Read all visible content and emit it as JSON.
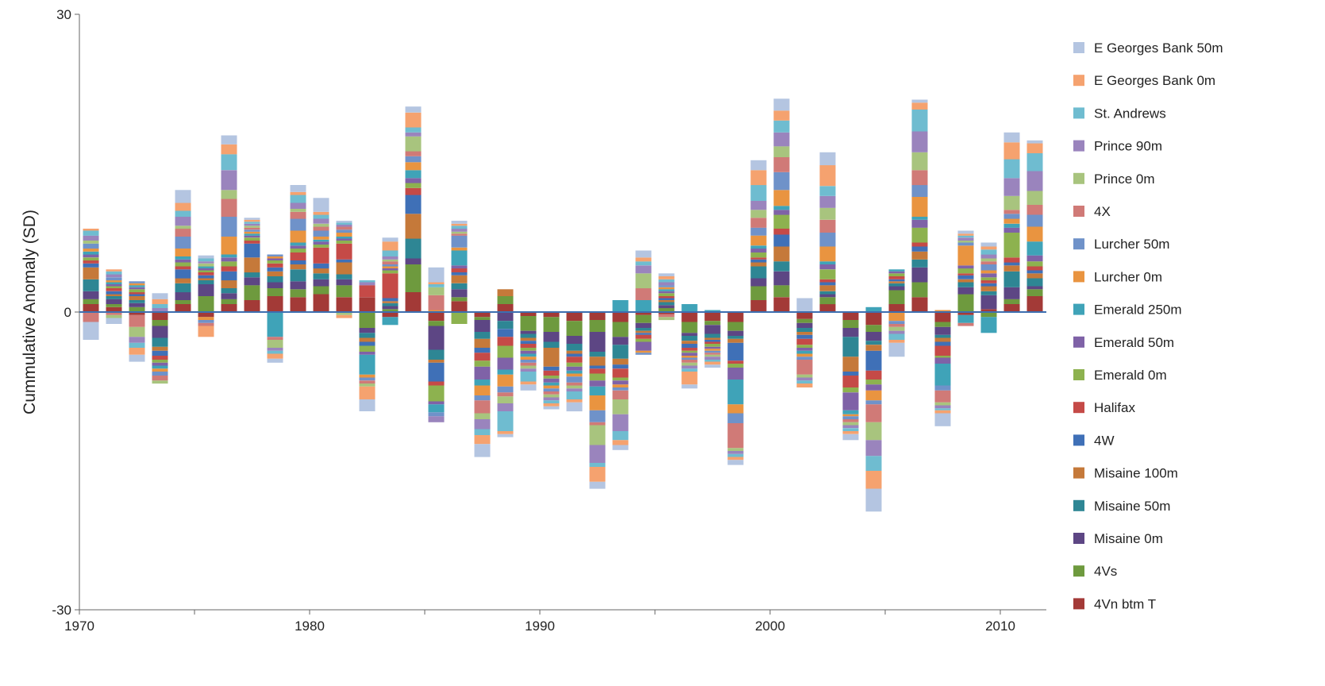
{
  "chart_data": {
    "type": "bar",
    "stacked": true,
    "title": "",
    "xlabel": "",
    "ylabel": "Cummulative Anomaly  (SD)",
    "ylim": [
      -30,
      30
    ],
    "xlim": [
      1970,
      2012
    ],
    "x_ticks": [
      1970,
      1980,
      1990,
      2000,
      2010
    ],
    "y_ticks": [
      -30,
      0,
      30
    ],
    "grid": false,
    "legend_position": "right",
    "years": [
      1970,
      1971,
      1972,
      1973,
      1974,
      1975,
      1976,
      1977,
      1978,
      1979,
      1980,
      1981,
      1982,
      1983,
      1984,
      1985,
      1986,
      1987,
      1988,
      1989,
      1990,
      1991,
      1992,
      1993,
      1994,
      1995,
      1996,
      1997,
      1998,
      1999,
      2000,
      2001,
      2002,
      2003,
      2004,
      2005,
      2006,
      2007,
      2008,
      2009,
      2010,
      2011
    ],
    "series": [
      {
        "name": "4Vn btm T",
        "color": "#a33a37",
        "values": [
          0.8,
          0.5,
          -0.3,
          -0.8,
          0.8,
          -0.5,
          0.8,
          1.2,
          1.6,
          1.5,
          1.8,
          1.5,
          1.5,
          -0.5,
          2.0,
          -0.9,
          1.1,
          -0.5,
          0.8,
          -0.4,
          -0.5,
          -0.9,
          -0.8,
          -1.0,
          -0.3,
          -0.2,
          -1.0,
          -0.9,
          -1.0,
          1.2,
          1.5,
          -0.7,
          0.8,
          -0.8,
          -1.3,
          0.8,
          1.5,
          -1.0,
          -0.3,
          0.3,
          0.8,
          1.6
        ]
      },
      {
        "name": "4Vs",
        "color": "#6e9a3e",
        "values": [
          0.5,
          0.3,
          0.5,
          -0.6,
          0.4,
          1.6,
          0.5,
          1.5,
          0.8,
          0.8,
          0.8,
          1.2,
          -1.6,
          0.3,
          2.8,
          -0.5,
          0.4,
          -0.3,
          0.8,
          -1.5,
          -1.5,
          -1.5,
          -1.2,
          -1.5,
          -0.8,
          0.4,
          -1.1,
          -0.4,
          -0.9,
          1.4,
          1.2,
          -0.4,
          0.7,
          -0.8,
          -0.7,
          1.4,
          1.5,
          -0.5,
          1.8,
          -0.5,
          0.5,
          0.7
        ]
      },
      {
        "name": "Misaine 0m",
        "color": "#5d4684",
        "values": [
          0.8,
          0.5,
          0.4,
          -1.2,
          0.8,
          1.2,
          0.6,
          0.8,
          0.6,
          0.8,
          0.7,
          0.6,
          -0.5,
          0.3,
          0.6,
          -2.4,
          0.8,
          -1.2,
          -0.9,
          -0.3,
          -1.0,
          -0.8,
          -2.0,
          -0.8,
          -0.5,
          0.3,
          -0.3,
          -0.9,
          -0.5,
          0.8,
          1.4,
          -0.5,
          0.3,
          -0.9,
          -0.9,
          0.4,
          1.5,
          -0.8,
          0.7,
          1.4,
          1.2,
          0.3
        ]
      },
      {
        "name": "Misaine 50m",
        "color": "#2e8694",
        "values": [
          1.2,
          0.3,
          0.3,
          -0.9,
          0.9,
          0.4,
          0.5,
          0.5,
          0.6,
          1.2,
          0.6,
          0.5,
          -0.5,
          0.3,
          2.0,
          -1.0,
          0.6,
          -0.7,
          -0.8,
          -0.4,
          -0.6,
          -0.7,
          -0.5,
          -1.4,
          -0.3,
          0.3,
          -0.5,
          -0.4,
          -0.3,
          1.2,
          1.0,
          -0.4,
          0.3,
          -2.0,
          -0.4,
          0.3,
          0.8,
          -0.3,
          0.5,
          0.4,
          1.6,
          0.8
        ]
      },
      {
        "name": "Misaine 100m",
        "color": "#c5793a",
        "values": [
          1.2,
          0.2,
          0.4,
          -0.4,
          0.5,
          0.2,
          0.8,
          1.5,
          0.5,
          0.5,
          0.5,
          1.2,
          -0.4,
          0.2,
          2.5,
          -0.3,
          0.8,
          -0.9,
          0.7,
          -0.3,
          -1.9,
          -0.3,
          -0.9,
          -0.6,
          -0.2,
          0.2,
          -0.3,
          -0.2,
          -0.4,
          0.4,
          1.5,
          -0.3,
          0.6,
          -1.5,
          -0.6,
          0.2,
          0.8,
          -0.4,
          0.3,
          0.5,
          0.6,
          0.5
        ]
      },
      {
        "name": "4W",
        "color": "#3f70b7",
        "values": [
          0.4,
          0.3,
          0.2,
          -0.5,
          0.9,
          0.3,
          0.9,
          1.4,
          0.4,
          0.4,
          0.5,
          0.3,
          -0.4,
          0.3,
          1.9,
          -1.9,
          0.3,
          -0.5,
          -0.8,
          -0.3,
          -0.4,
          -0.3,
          -0.3,
          -0.4,
          -0.2,
          0.2,
          -0.4,
          -0.2,
          -1.8,
          0.3,
          1.2,
          -0.4,
          0.3,
          -0.4,
          -2.0,
          0.2,
          0.5,
          -0.4,
          0.4,
          0.3,
          0.3,
          0.3
        ]
      },
      {
        "name": "Halifax",
        "color": "#c54a47",
        "values": [
          0.3,
          0.3,
          0.2,
          -0.4,
          0.3,
          0.3,
          0.5,
          0.3,
          0.4,
          0.8,
          1.6,
          1.6,
          1.2,
          2.5,
          0.7,
          -0.4,
          0.4,
          -0.8,
          -0.9,
          -0.4,
          -0.5,
          -0.6,
          -0.5,
          -0.9,
          -0.4,
          0.2,
          -0.3,
          -0.2,
          -0.3,
          0.2,
          0.6,
          -0.6,
          0.3,
          -1.2,
          -0.9,
          0.3,
          0.4,
          -1.0,
          0.2,
          0.3,
          0.5,
          0.4
        ]
      },
      {
        "name": "Emerald 0m",
        "color": "#8db24f",
        "values": [
          0.3,
          0.2,
          0.3,
          -0.3,
          0.4,
          0.2,
          0.5,
          0.3,
          0.3,
          0.4,
          0.3,
          0.3,
          -0.6,
          0.3,
          0.5,
          -1.6,
          -1.2,
          -0.6,
          -1.2,
          -0.3,
          -0.3,
          -0.4,
          -0.7,
          -0.3,
          -0.3,
          0.3,
          -0.2,
          -0.3,
          -0.4,
          0.5,
          1.4,
          -0.3,
          1.0,
          -0.5,
          -0.5,
          0.3,
          1.5,
          -0.2,
          0.5,
          0.3,
          2.5,
          0.5
        ]
      },
      {
        "name": "Emerald 50m",
        "color": "#7f62a7",
        "values": [
          0.3,
          0.2,
          0.2,
          -0.3,
          0.3,
          0.2,
          0.4,
          0.2,
          0.2,
          0.3,
          0.3,
          0.2,
          -0.3,
          0.2,
          0.5,
          -0.3,
          0.3,
          -1.3,
          -1.2,
          -0.3,
          -0.4,
          -0.4,
          -0.6,
          -0.4,
          -0.9,
          0.2,
          -0.3,
          -0.2,
          -1.2,
          0.4,
          0.5,
          -0.3,
          0.5,
          -1.8,
          -0.6,
          0.2,
          0.8,
          -0.6,
          0.3,
          0.4,
          0.5,
          0.6
        ]
      },
      {
        "name": "Emerald 250m",
        "color": "#3fa3b8",
        "values": [
          0.3,
          0.2,
          0.2,
          -0.3,
          0.3,
          0.2,
          0.3,
          0.2,
          -2.5,
          0.3,
          0.2,
          0.2,
          -2.0,
          -0.8,
          0.8,
          -0.8,
          1.5,
          -0.6,
          -0.5,
          -0.3,
          -0.3,
          -0.3,
          -0.9,
          1.2,
          1.2,
          0.2,
          0.8,
          0.2,
          -2.5,
          0.3,
          0.4,
          -0.3,
          0.3,
          -0.4,
          0.5,
          0.2,
          0.3,
          -2.2,
          -0.8,
          -1.6,
          0.4,
          1.4
        ]
      },
      {
        "name": "Lurcher 0m",
        "color": "#e99440",
        "values": [
          0.3,
          0.2,
          0.2,
          -0.3,
          0.8,
          -0.3,
          1.8,
          0.2,
          0.2,
          1.2,
          0.3,
          0.4,
          -0.3,
          0.2,
          0.8,
          0.2,
          0.3,
          -1.0,
          -1.2,
          -0.3,
          -0.3,
          -0.3,
          -1.5,
          -0.3,
          -0.2,
          0.2,
          -0.2,
          -0.2,
          -0.9,
          1.0,
          1.6,
          -0.3,
          1.5,
          -0.2,
          -1.0,
          -0.9,
          2.0,
          0.2,
          2.0,
          0.3,
          0.5,
          1.5
        ]
      },
      {
        "name": "Lurcher 50m",
        "color": "#6f92c9",
        "values": [
          0.5,
          0.3,
          0.2,
          -0.4,
          1.2,
          -0.3,
          2.0,
          0.2,
          0.2,
          1.2,
          0.6,
          0.3,
          -0.3,
          0.2,
          0.6,
          -0.4,
          1.2,
          -0.5,
          -0.6,
          -0.3,
          -0.3,
          -0.6,
          -1.2,
          -0.3,
          -0.2,
          0.2,
          -0.2,
          -0.2,
          -1.0,
          0.8,
          1.8,
          -0.3,
          1.4,
          -0.3,
          -0.4,
          -0.3,
          1.2,
          -0.5,
          0.3,
          0.6,
          0.5,
          1.2
        ]
      },
      {
        "name": "4X",
        "color": "#d07a77",
        "values": [
          -1.0,
          -0.3,
          -1.2,
          -0.5,
          0.8,
          -0.3,
          1.8,
          0.2,
          -0.3,
          0.7,
          0.4,
          0.3,
          -0.3,
          0.3,
          0.5,
          1.5,
          0.2,
          -1.3,
          -0.4,
          -0.3,
          -0.3,
          -0.3,
          -0.3,
          -0.9,
          1.2,
          -0.3,
          -0.3,
          -0.2,
          -2.5,
          1.0,
          1.5,
          -1.5,
          1.3,
          -0.3,
          -1.8,
          -0.3,
          1.5,
          -1.2,
          -0.3,
          0.3,
          0.4,
          1.0
        ]
      },
      {
        "name": "Prince 0m",
        "color": "#a8c47e",
        "values": [
          0.3,
          -0.3,
          -1.0,
          -0.3,
          0.3,
          0.3,
          0.9,
          0.2,
          -0.8,
          0.3,
          0.3,
          -0.3,
          -0.3,
          0.2,
          1.5,
          0.8,
          0.2,
          -0.6,
          -0.7,
          -0.3,
          -0.3,
          -0.3,
          -2.0,
          -1.5,
          1.5,
          -0.3,
          -0.3,
          -0.2,
          -0.3,
          0.8,
          1.1,
          -0.3,
          1.2,
          -0.3,
          -1.8,
          -0.4,
          1.8,
          -0.3,
          0.2,
          0.3,
          1.4,
          1.4
        ]
      },
      {
        "name": "Prince 90m",
        "color": "#9a84bd",
        "values": [
          0.5,
          0.3,
          -0.6,
          0.4,
          0.9,
          0.2,
          2.0,
          0.2,
          -0.3,
          0.6,
          0.5,
          0.2,
          0.3,
          0.3,
          0.4,
          -0.6,
          0.3,
          -1.0,
          -0.8,
          -0.3,
          -0.3,
          -0.3,
          -1.8,
          -1.7,
          0.8,
          0.3,
          -0.3,
          -0.3,
          -0.3,
          0.9,
          1.4,
          -0.3,
          1.2,
          -0.3,
          -1.6,
          -0.3,
          2.1,
          -0.3,
          0.3,
          0.4,
          1.8,
          2.0
        ]
      },
      {
        "name": "St. Andrews",
        "color": "#6fbcd0",
        "values": [
          0.5,
          0.3,
          -0.5,
          0.4,
          0.6,
          0.3,
          1.6,
          0.2,
          -0.3,
          0.8,
          0.4,
          0.2,
          0.2,
          0.6,
          0.5,
          0.3,
          0.3,
          -0.6,
          -2.0,
          -1.0,
          -0.3,
          -0.8,
          -0.4,
          -0.9,
          0.4,
          0.3,
          -0.3,
          -0.2,
          -0.3,
          1.6,
          1.2,
          -0.3,
          1.0,
          -0.3,
          -1.5,
          -0.6,
          2.2,
          -0.2,
          0.2,
          0.5,
          1.9,
          1.8
        ]
      },
      {
        "name": "E Georges Bank 0m",
        "color": "#f5a26f",
        "values": [
          0.2,
          0.2,
          -0.7,
          0.5,
          0.8,
          -1.1,
          1.0,
          0.2,
          -0.5,
          0.3,
          0.3,
          -0.3,
          -1.3,
          0.9,
          1.5,
          0.2,
          0.2,
          -0.9,
          -0.3,
          -0.3,
          -0.3,
          -0.3,
          -1.5,
          -0.5,
          0.4,
          0.3,
          -1.3,
          -0.3,
          -0.3,
          1.5,
          1.0,
          -0.4,
          2.1,
          -0.3,
          -1.8,
          -0.3,
          0.7,
          -0.3,
          0.2,
          0.3,
          1.7,
          1.0
        ]
      },
      {
        "name": "E Georges Bank 50m",
        "color": "#b4c5e1",
        "values": [
          -1.8,
          -0.6,
          -0.7,
          0.6,
          1.3,
          0.3,
          0.9,
          0.2,
          -0.4,
          0.7,
          1.4,
          0.2,
          -1.2,
          0.4,
          0.6,
          1.5,
          0.3,
          -1.3,
          -0.3,
          -0.6,
          -0.3,
          -0.9,
          -0.7,
          -0.5,
          0.7,
          0.3,
          -0.4,
          -0.3,
          -0.5,
          1.0,
          1.2,
          1.4,
          1.3,
          -0.6,
          -2.3,
          -1.4,
          0.3,
          -1.3,
          0.3,
          0.4,
          1.0,
          0.3
        ]
      }
    ]
  }
}
